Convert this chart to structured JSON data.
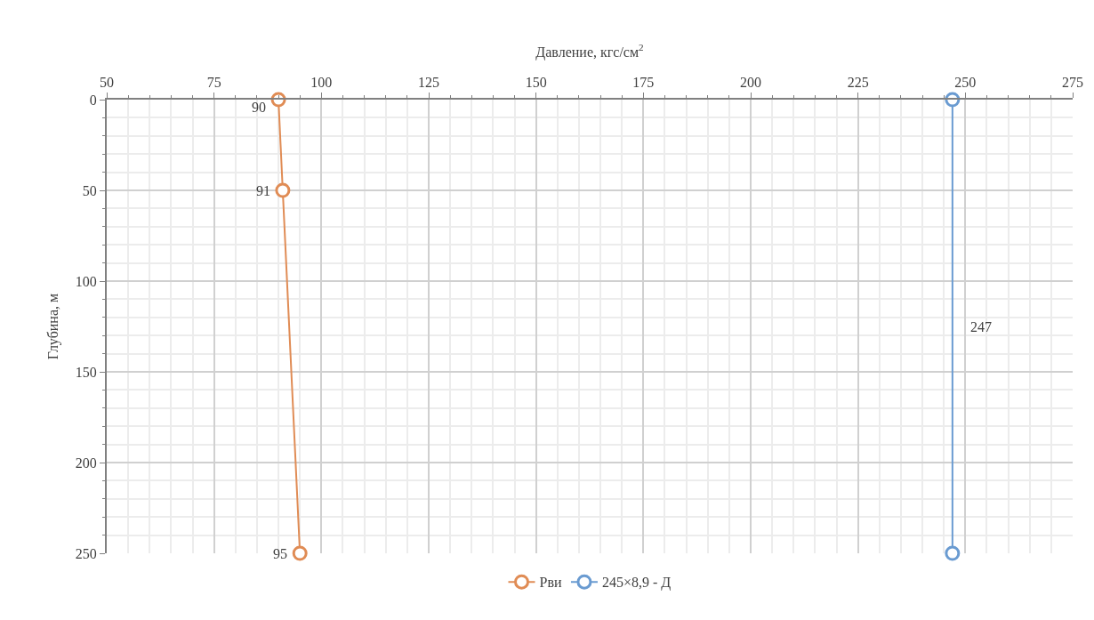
{
  "chart_data": {
    "type": "line",
    "xlabel": "Давление, кгс/см$^{2}$",
    "ylabel": "Глубина, м",
    "xlim": [
      50,
      275
    ],
    "xticks": [
      50,
      75,
      100,
      125,
      150,
      175,
      200,
      225,
      250,
      275
    ],
    "ylim": [
      250,
      0
    ],
    "yticks": [
      0,
      50,
      100,
      150,
      200,
      250
    ],
    "grid": true,
    "legend": "bottom",
    "marker": "circle",
    "line_style": "solid",
    "series": [
      {
        "name": "Рви",
        "color": "#e08c55",
        "x": [
          90,
          91,
          95
        ],
        "values": [
          0,
          50,
          250
        ]
      },
      {
        "name": "245×8,9 - Д",
        "color": "#6a9bd1",
        "x": [
          247,
          247
        ],
        "values": [
          0,
          250
        ]
      }
    ],
    "annotations": [
      {
        "text": "90",
        "x": 90,
        "y": 0
      },
      {
        "text": "91",
        "x": 91,
        "y": 50
      },
      {
        "text": "95",
        "x": 95,
        "y": 250
      },
      {
        "text": "247",
        "x": 247,
        "y": 125
      }
    ]
  }
}
